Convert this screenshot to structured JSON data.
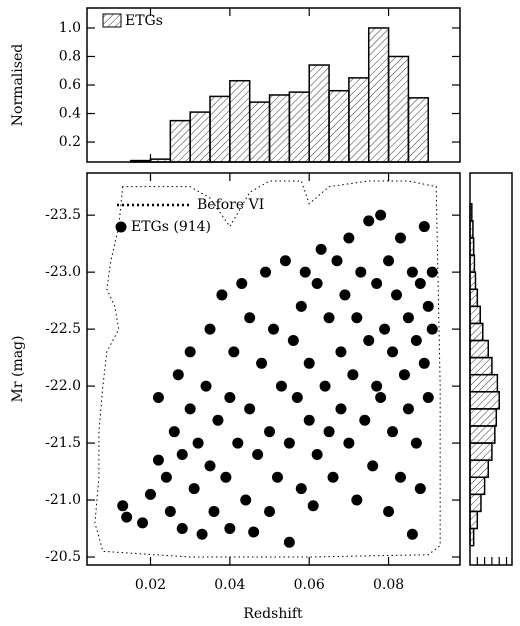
{
  "chart_data": [
    {
      "type": "histogram",
      "ylabel": "Normalised",
      "bins": [
        0.005,
        0.01,
        0.015,
        0.02,
        0.025,
        0.03,
        0.035,
        0.04,
        0.045,
        0.05,
        0.055,
        0.06,
        0.065,
        0.07,
        0.075,
        0.08,
        0.085,
        0.09,
        0.095
      ],
      "series": [
        {
          "name": "ETGs",
          "values": [
            0.01,
            0.03,
            0.07,
            0.08,
            0.35,
            0.41,
            0.52,
            0.63,
            0.48,
            0.53,
            0.55,
            0.74,
            0.56,
            0.65,
            1.0,
            0.8,
            0.51,
            0.02
          ]
        }
      ],
      "xlim": [
        0.004,
        0.098
      ],
      "xticks": [
        0.02,
        0.04,
        0.06,
        0.08
      ],
      "ylim": [
        0.06,
        1.14
      ],
      "yticks": [
        0.2,
        0.4,
        0.6,
        0.8,
        {
          "value": 1,
          "label": "1.0"
        }
      ]
    },
    {
      "type": "scatter",
      "xlabel": "Redshift",
      "ylabel": "Mr (mag)",
      "xlim": [
        0.004,
        0.098
      ],
      "xticks": [
        0.02,
        0.04,
        0.06,
        0.08
      ],
      "ylim": [
        -20.43,
        -23.87
      ],
      "yticks": [
        -23.5,
        {
          "value": -23,
          "label": "-23.0"
        },
        -22.5,
        {
          "value": -22,
          "label": "-22.0"
        },
        -21.5,
        {
          "value": -21,
          "label": "-21.0"
        },
        -20.5
      ],
      "series": [
        {
          "name": "Before VI",
          "style": "dotted",
          "x": [
            0.013,
            0.012,
            0.01,
            0.009,
            0.011,
            0.012,
            0.009,
            0.008,
            0.007,
            0.007,
            0.006,
            0.008,
            0.03,
            0.06,
            0.09,
            0.093,
            0.093,
            0.092,
            0.085,
            0.075,
            0.065,
            0.06,
            0.058,
            0.05,
            0.045,
            0.04,
            0.035,
            0.03,
            0.02,
            0.013
          ],
          "y": [
            -23.75,
            -23.4,
            -23.1,
            -22.85,
            -22.7,
            -22.5,
            -22.3,
            -22.0,
            -21.6,
            -21.2,
            -20.8,
            -20.55,
            -20.5,
            -20.5,
            -20.52,
            -20.6,
            -22.0,
            -23.75,
            -23.8,
            -23.8,
            -23.75,
            -23.6,
            -23.8,
            -23.8,
            -23.7,
            -23.4,
            -23.65,
            -23.75,
            -23.75,
            -23.75
          ]
        },
        {
          "name": "ETGs (914)",
          "style": "points",
          "x": [
            0.013,
            0.014,
            0.018,
            0.02,
            0.022,
            0.022,
            0.024,
            0.025,
            0.026,
            0.027,
            0.028,
            0.028,
            0.03,
            0.03,
            0.031,
            0.032,
            0.033,
            0.034,
            0.035,
            0.035,
            0.036,
            0.037,
            0.038,
            0.039,
            0.04,
            0.04,
            0.041,
            0.042,
            0.043,
            0.044,
            0.045,
            0.045,
            0.046,
            0.047,
            0.048,
            0.049,
            0.05,
            0.05,
            0.051,
            0.052,
            0.053,
            0.054,
            0.055,
            0.055,
            0.056,
            0.057,
            0.058,
            0.058,
            0.059,
            0.06,
            0.06,
            0.061,
            0.062,
            0.062,
            0.063,
            0.064,
            0.065,
            0.065,
            0.066,
            0.067,
            0.068,
            0.068,
            0.069,
            0.07,
            0.07,
            0.071,
            0.072,
            0.072,
            0.073,
            0.074,
            0.075,
            0.075,
            0.076,
            0.077,
            0.077,
            0.078,
            0.078,
            0.079,
            0.08,
            0.08,
            0.081,
            0.081,
            0.082,
            0.083,
            0.083,
            0.084,
            0.085,
            0.085,
            0.086,
            0.086,
            0.087,
            0.087,
            0.088,
            0.088,
            0.089,
            0.089,
            0.09,
            0.09,
            0.091,
            0.091
          ],
          "y": [
            -20.95,
            -20.85,
            -20.8,
            -21.05,
            -21.35,
            -21.9,
            -21.2,
            -20.9,
            -21.6,
            -22.1,
            -21.4,
            -20.75,
            -21.8,
            -22.3,
            -21.1,
            -21.5,
            -20.7,
            -22.0,
            -21.3,
            -22.5,
            -20.9,
            -21.7,
            -22.8,
            -21.2,
            -21.9,
            -20.75,
            -22.3,
            -21.5,
            -22.9,
            -21.0,
            -21.8,
            -22.6,
            -20.72,
            -21.4,
            -22.2,
            -23.0,
            -21.6,
            -20.9,
            -22.5,
            -21.2,
            -22.0,
            -23.1,
            -21.5,
            -20.63,
            -22.4,
            -21.9,
            -22.7,
            -21.1,
            -23.0,
            -21.7,
            -22.2,
            -20.95,
            -22.9,
            -21.4,
            -23.2,
            -22.0,
            -21.6,
            -22.6,
            -21.2,
            -23.1,
            -22.3,
            -21.8,
            -22.8,
            -21.5,
            -23.3,
            -22.1,
            -21.0,
            -22.6,
            -23.0,
            -21.7,
            -22.4,
            -23.45,
            -21.3,
            -22.9,
            -22.0,
            -23.5,
            -21.9,
            -22.5,
            -20.9,
            -23.1,
            -21.6,
            -22.3,
            -22.8,
            -21.2,
            -23.3,
            -22.1,
            -22.6,
            -21.8,
            -20.7,
            -23.0,
            -22.4,
            -21.5,
            -22.9,
            -21.1,
            -22.2,
            -23.4,
            -22.7,
            -21.9,
            -22.5,
            -23.0
          ]
        }
      ]
    },
    {
      "type": "histogram-horizontal",
      "bins": [
        -23.6,
        -23.45,
        -23.3,
        -23.15,
        -23.0,
        -22.85,
        -22.7,
        -22.55,
        -22.4,
        -22.25,
        -22.1,
        -21.95,
        -21.8,
        -21.65,
        -21.5,
        -21.35,
        -21.2,
        -21.05,
        -20.9,
        -20.75,
        -20.6
      ],
      "values": [
        0.05,
        0.08,
        0.1,
        0.12,
        0.15,
        0.2,
        0.28,
        0.35,
        0.5,
        0.6,
        0.75,
        0.8,
        0.72,
        0.68,
        0.6,
        0.5,
        0.4,
        0.3,
        0.2,
        0.1
      ],
      "xlim": [
        0,
        1.15
      ],
      "xticks": [
        0.2,
        0.4,
        0.6,
        0.8,
        1.0
      ],
      "ylim": [
        -20.43,
        -23.87
      ]
    }
  ]
}
